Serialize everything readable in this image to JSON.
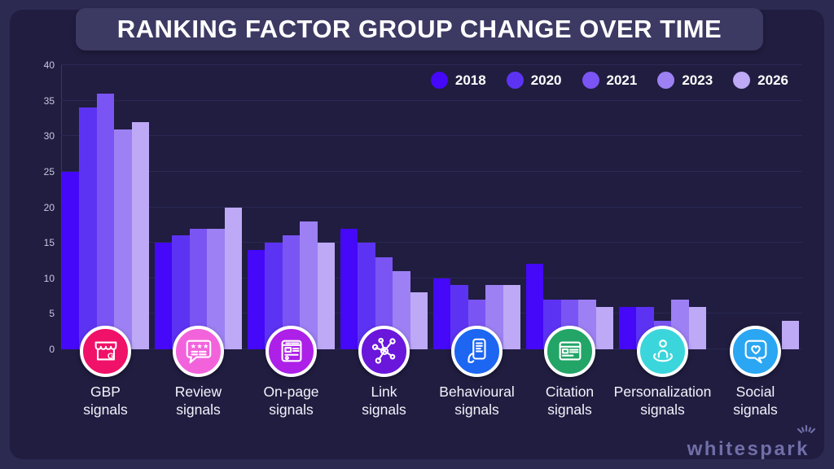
{
  "title": "RANKING FACTOR GROUP CHANGE OVER TIME",
  "colors": {
    "outer_bg": "#2D2A52",
    "card_bg": "#201D40",
    "banner_bg": "#3C3963",
    "gridline": "#2B2853",
    "tick_text": "#C9C7E2",
    "category_text": "#F4F3FC",
    "logo_text_color": "#716EA8"
  },
  "legend": {
    "position": "top-right",
    "items": [
      {
        "label": "2018",
        "color": "#4508F9"
      },
      {
        "label": "2020",
        "color": "#5D33F3"
      },
      {
        "label": "2021",
        "color": "#7B55F3"
      },
      {
        "label": "2023",
        "color": "#9D80F3"
      },
      {
        "label": "2026",
        "color": "#BEA9F6"
      }
    ]
  },
  "chart_data": {
    "type": "bar",
    "title": "RANKING FACTOR GROUP CHANGE OVER TIME",
    "categories": [
      "GBP signals",
      "Review signals",
      "On-page signals",
      "Link signals",
      "Behavioural signals",
      "Citation signals",
      "Personalization signals",
      "Social signals"
    ],
    "series": [
      {
        "name": "2018",
        "color": "#4508F9",
        "values": [
          25,
          15,
          14,
          17,
          10,
          12,
          6,
          null
        ]
      },
      {
        "name": "2020",
        "color": "#5D33F3",
        "values": [
          34,
          16,
          15,
          15,
          9,
          7,
          6,
          null
        ]
      },
      {
        "name": "2021",
        "color": "#7B55F3",
        "values": [
          36,
          17,
          16,
          13,
          7,
          7,
          4,
          null
        ]
      },
      {
        "name": "2023",
        "color": "#9D80F3",
        "values": [
          31,
          17,
          18,
          11,
          9,
          7,
          7,
          null
        ]
      },
      {
        "name": "2026",
        "color": "#BEA9F6",
        "values": [
          32,
          20,
          15,
          8,
          9,
          6,
          6,
          4
        ]
      }
    ],
    "note_hidden_values": "Social signals bars for 2018-2023 are hidden behind the category icon; only the 2026 bar (value 4) is visible.",
    "xlabel": "",
    "ylabel": "",
    "ylim": [
      0,
      40
    ],
    "yticks": [
      0,
      5,
      10,
      15,
      20,
      25,
      30,
      35,
      40
    ],
    "grid": true,
    "legend_position": "top-right"
  },
  "groups": [
    {
      "line1": "GBP",
      "line2": "signals",
      "icon": "storefront-g-icon",
      "icon_color": "#F01168"
    },
    {
      "line1": "Review",
      "line2": "signals",
      "icon": "review-stars-bubble-icon",
      "icon_color": "#F263DB"
    },
    {
      "line1": "On-page",
      "line2": "signals",
      "icon": "webpage-icon",
      "icon_color": "#AD20E8"
    },
    {
      "line1": "Link",
      "line2": "signals",
      "icon": "link-network-icon",
      "icon_color": "#6A16DB"
    },
    {
      "line1": "Behavioural",
      "line2": "signals",
      "icon": "hand-phone-icon",
      "icon_color": "#1C66F2"
    },
    {
      "line1": "Citation",
      "line2": "signals",
      "icon": "listing-page-icon",
      "icon_color": "#22A567"
    },
    {
      "line1": "Personalization",
      "line2": "signals",
      "icon": "person-icon",
      "icon_color": "#3BD6DB"
    },
    {
      "line1": "Social",
      "line2": "signals",
      "icon": "heart-bubble-icon",
      "icon_color": "#2AA6F2"
    }
  ],
  "footer": {
    "logo_text": "whitespark"
  }
}
